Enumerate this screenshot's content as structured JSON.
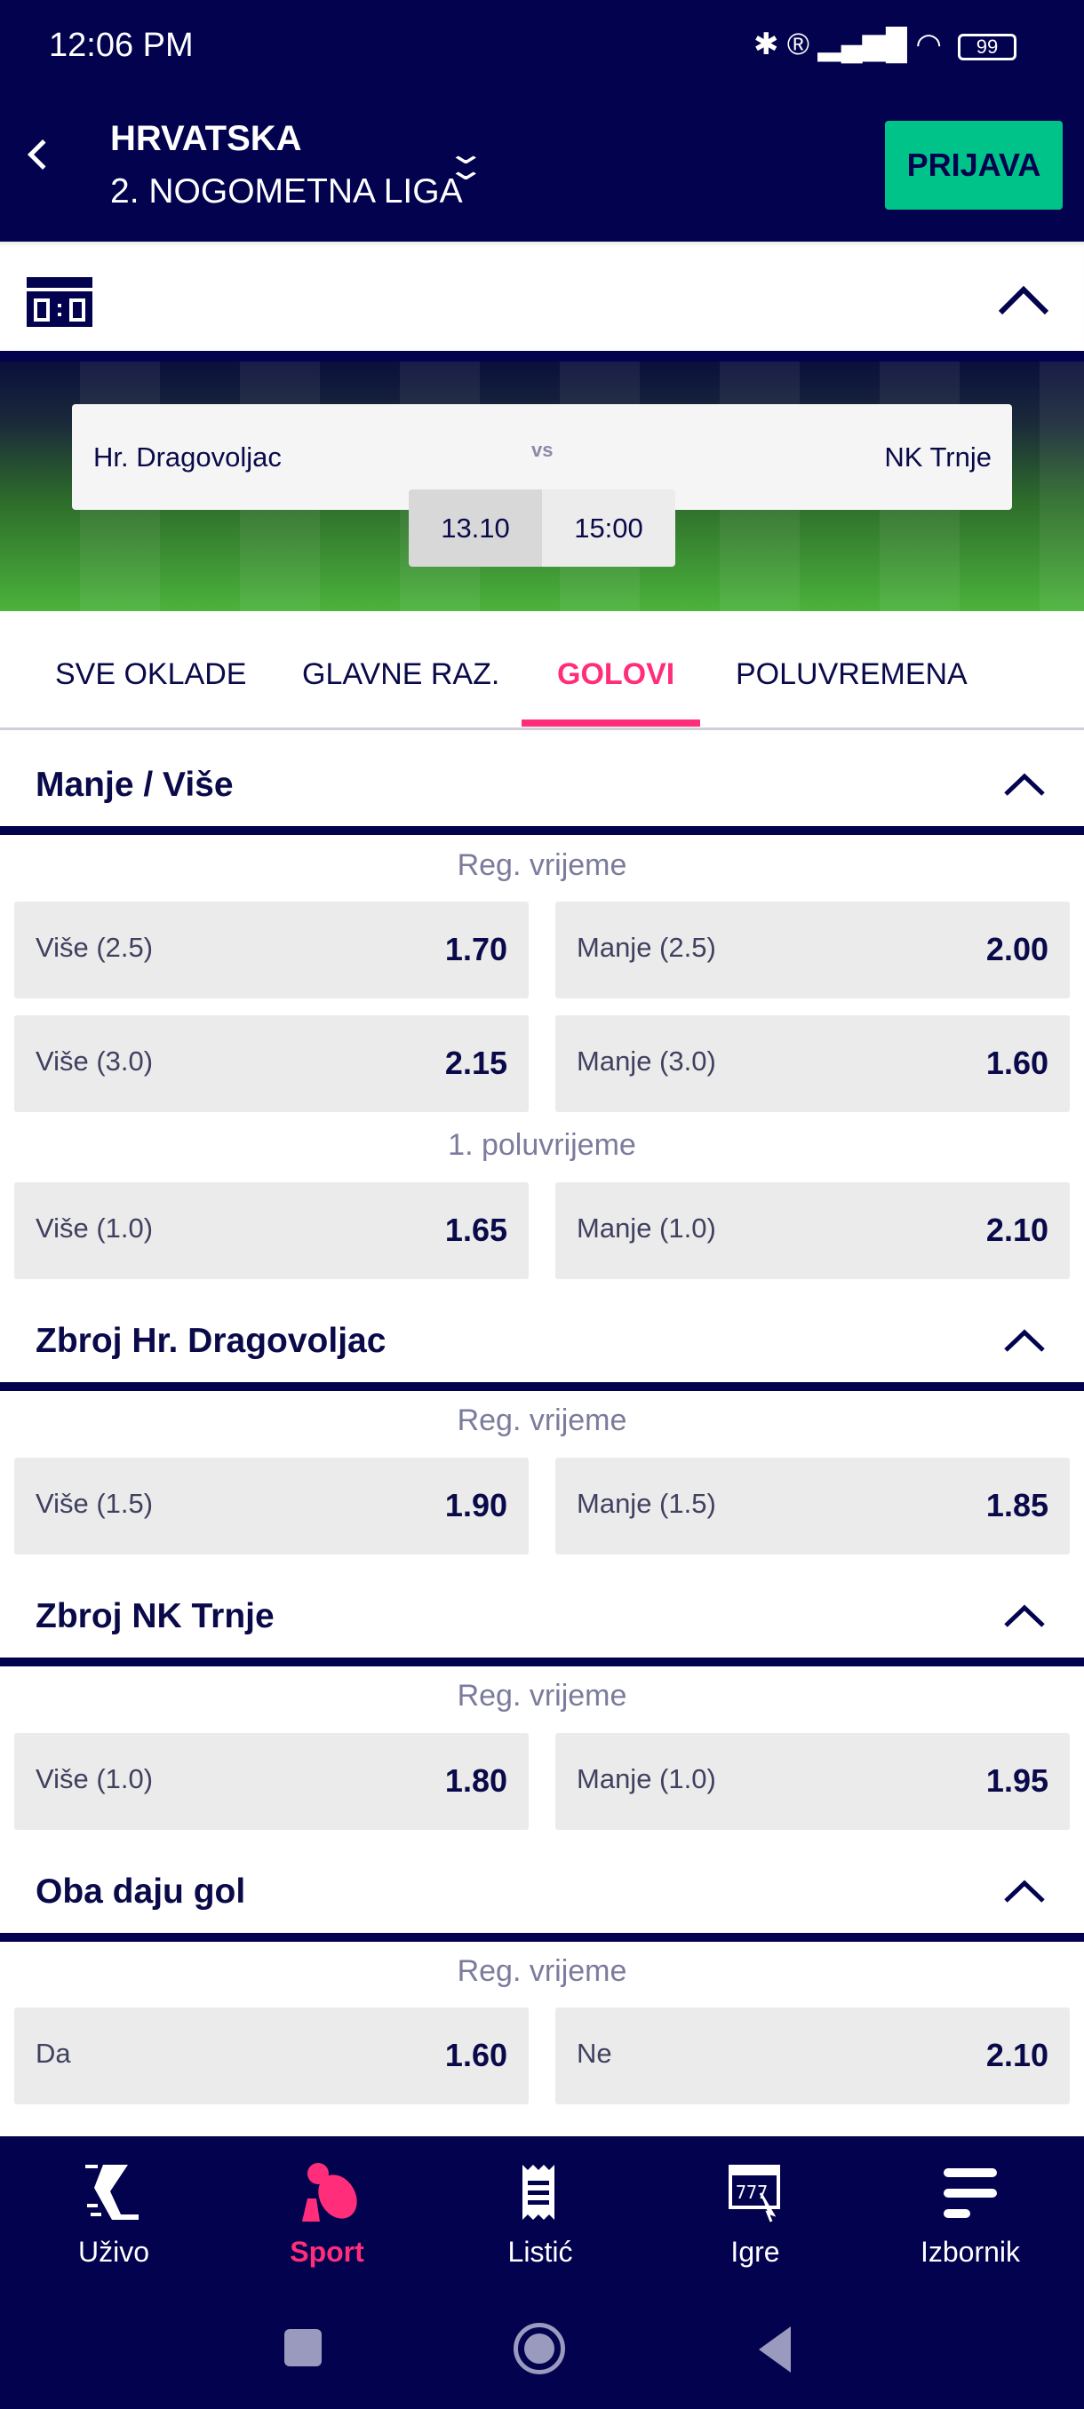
{
  "status": {
    "time": "12:06 PM",
    "battery": "99"
  },
  "header": {
    "country": "HRVATSKA",
    "league": "2. NOGOMETNA LIGA",
    "login": "PRIJAVA"
  },
  "match": {
    "home": "Hr. Dragovoljac",
    "vs": "vs",
    "away": "NK Trnje",
    "date": "13.10",
    "time": "15:00"
  },
  "tabs": [
    {
      "label": "SVE OKLADE"
    },
    {
      "label": "GLAVNE RAZ."
    },
    {
      "label": "GOLOVI",
      "active": true
    },
    {
      "label": "POLUVREMENA"
    }
  ],
  "markets": [
    {
      "title": "Manje / Više",
      "groups": [
        {
          "period": "Reg. vrijeme",
          "rows": [
            [
              {
                "label": "Više (2.5)",
                "odd": "1.70"
              },
              {
                "label": "Manje (2.5)",
                "odd": "2.00"
              }
            ],
            [
              {
                "label": "Više (3.0)",
                "odd": "2.15"
              },
              {
                "label": "Manje (3.0)",
                "odd": "1.60"
              }
            ]
          ]
        },
        {
          "period": "1. poluvrijeme",
          "rows": [
            [
              {
                "label": "Više (1.0)",
                "odd": "1.65"
              },
              {
                "label": "Manje (1.0)",
                "odd": "2.10"
              }
            ]
          ]
        }
      ]
    },
    {
      "title": "Zbroj Hr. Dragovoljac",
      "groups": [
        {
          "period": "Reg. vrijeme",
          "rows": [
            [
              {
                "label": "Više (1.5)",
                "odd": "1.90"
              },
              {
                "label": "Manje (1.5)",
                "odd": "1.85"
              }
            ]
          ]
        }
      ]
    },
    {
      "title": "Zbroj NK Trnje",
      "groups": [
        {
          "period": "Reg. vrijeme",
          "rows": [
            [
              {
                "label": "Više (1.0)",
                "odd": "1.80"
              },
              {
                "label": "Manje (1.0)",
                "odd": "1.95"
              }
            ]
          ]
        }
      ]
    },
    {
      "title": "Oba daju gol",
      "groups": [
        {
          "period": "Reg. vrijeme",
          "rows": [
            [
              {
                "label": "Da",
                "odd": "1.60"
              },
              {
                "label": "Ne",
                "odd": "2.10"
              }
            ]
          ]
        }
      ]
    }
  ],
  "nav": [
    {
      "label": "Uživo",
      "icon": "running-shoe-icon"
    },
    {
      "label": "Sport",
      "icon": "sports-balls-icon",
      "active": true
    },
    {
      "label": "Listić",
      "icon": "betting-slip-icon"
    },
    {
      "label": "Igre",
      "icon": "slot-machine-icon"
    },
    {
      "label": "Izbornik",
      "icon": "menu-icon"
    }
  ],
  "colors": {
    "navy": "#02024f",
    "green": "#00c389",
    "pink": "#ff2d7a"
  }
}
